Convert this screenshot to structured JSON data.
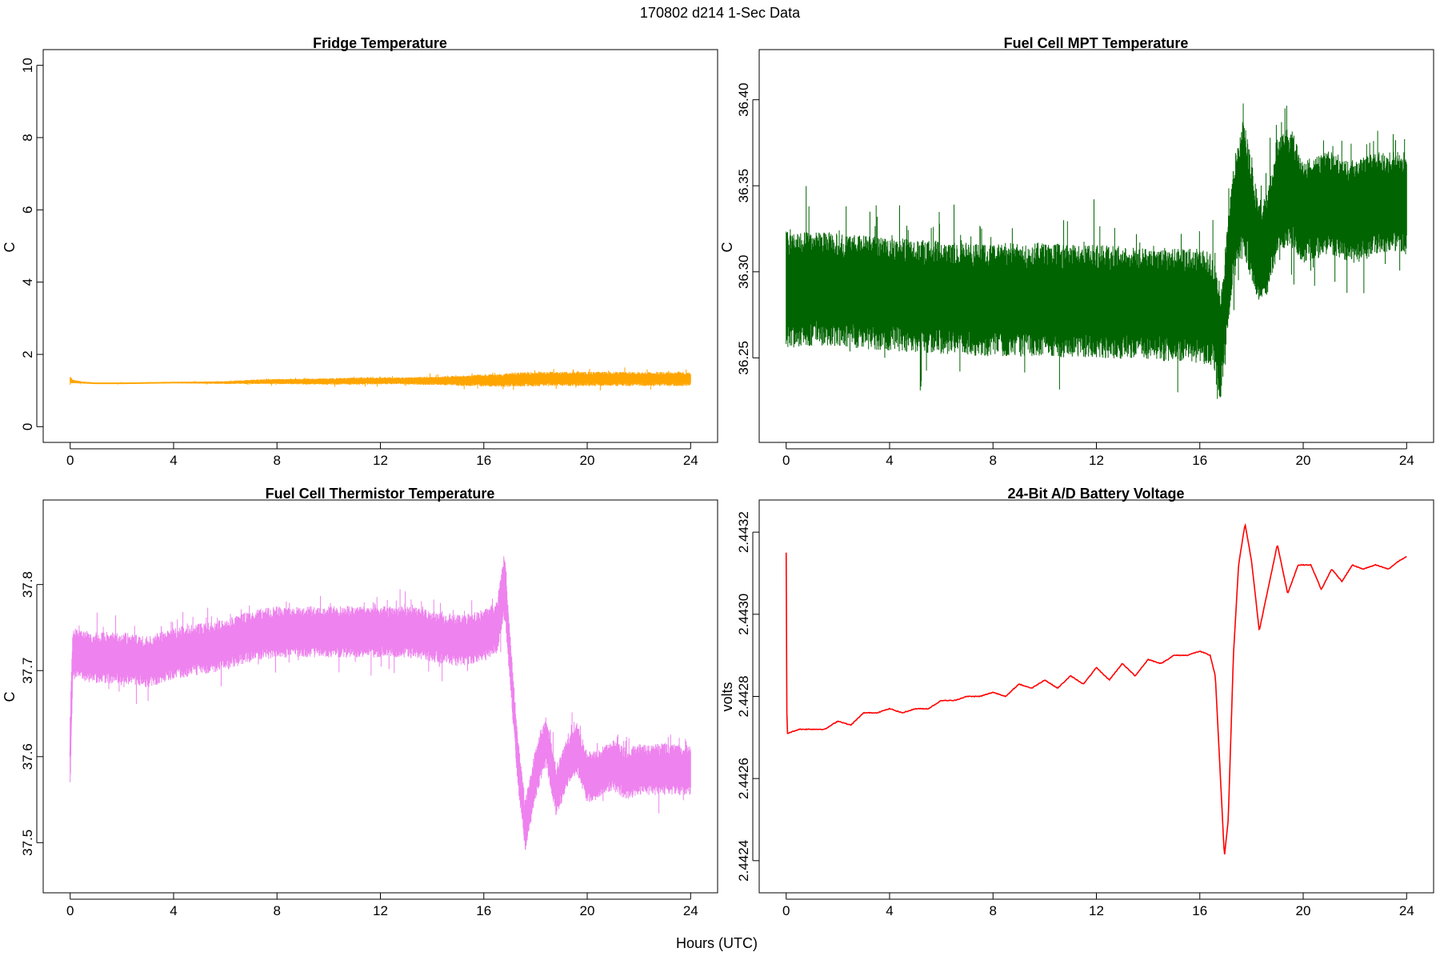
{
  "figure": {
    "title": "170802   d214   1-Sec Data",
    "xlabel": "Hours (UTC)"
  },
  "chart_data": [
    {
      "type": "line",
      "title": "Fridge Temperature",
      "ylabel": "C",
      "xlim": [
        0,
        24
      ],
      "ylim": [
        0,
        10
      ],
      "xticks": [
        "0",
        "4",
        "8",
        "12",
        "16",
        "20",
        "24"
      ],
      "yticks": [
        "0",
        "2",
        "4",
        "6",
        "8",
        "10"
      ],
      "color": "#FFA500",
      "style": "noisy-band",
      "series": [
        {
          "x": [
            0,
            0.1,
            0.5,
            1,
            2,
            3,
            4,
            5,
            6,
            7,
            8,
            9,
            10,
            11,
            12,
            13,
            14,
            15,
            16,
            16.7,
            17,
            18,
            19,
            20,
            21,
            22,
            23,
            24
          ],
          "center": [
            1.3,
            1.25,
            1.22,
            1.2,
            1.2,
            1.21,
            1.22,
            1.22,
            1.22,
            1.24,
            1.25,
            1.25,
            1.25,
            1.26,
            1.27,
            1.27,
            1.27,
            1.27,
            1.28,
            1.28,
            1.3,
            1.32,
            1.32,
            1.32,
            1.32,
            1.32,
            1.32,
            1.32
          ],
          "amplitude": [
            0.1,
            0.05,
            0.03,
            0.02,
            0.02,
            0.02,
            0.02,
            0.03,
            0.04,
            0.06,
            0.07,
            0.08,
            0.09,
            0.1,
            0.1,
            0.1,
            0.12,
            0.14,
            0.17,
            0.18,
            0.2,
            0.2,
            0.2,
            0.2,
            0.2,
            0.2,
            0.2,
            0.2
          ]
        }
      ]
    },
    {
      "type": "line",
      "title": "Fuel Cell MPT Temperature",
      "ylabel": "C",
      "xlim": [
        0,
        24
      ],
      "ylim": [
        36.21,
        36.42
      ],
      "xticks": [
        "0",
        "4",
        "8",
        "12",
        "16",
        "20",
        "24"
      ],
      "yticks": [
        "36.25",
        "36.30",
        "36.35",
        "36.40"
      ],
      "color": "#006400",
      "style": "noisy-band",
      "series": [
        {
          "x": [
            0,
            1,
            2,
            3,
            4,
            5,
            6,
            7,
            8,
            9,
            10,
            11,
            12,
            13,
            14,
            15,
            16,
            16.5,
            16.8,
            17,
            17.3,
            17.7,
            18,
            18.3,
            18.6,
            19,
            19.5,
            20,
            21,
            22,
            23,
            24
          ],
          "center": [
            36.29,
            36.29,
            36.29,
            36.288,
            36.287,
            36.286,
            36.285,
            36.284,
            36.284,
            36.284,
            36.284,
            36.283,
            36.283,
            36.282,
            36.281,
            36.281,
            36.28,
            36.278,
            36.255,
            36.285,
            36.33,
            36.35,
            36.33,
            36.31,
            36.315,
            36.345,
            36.35,
            36.335,
            36.34,
            36.335,
            36.34,
            36.34
          ],
          "amplitude": [
            0.035,
            0.033,
            0.033,
            0.033,
            0.033,
            0.033,
            0.033,
            0.033,
            0.033,
            0.033,
            0.033,
            0.033,
            0.033,
            0.033,
            0.033,
            0.033,
            0.033,
            0.033,
            0.03,
            0.03,
            0.035,
            0.04,
            0.035,
            0.03,
            0.03,
            0.035,
            0.035,
            0.03,
            0.03,
            0.03,
            0.03,
            0.03
          ]
        }
      ]
    },
    {
      "type": "line",
      "title": "Fuel Cell Thermistor Temperature",
      "ylabel": "C",
      "xlim": [
        0,
        24
      ],
      "ylim": [
        37.46,
        37.88
      ],
      "xticks": [
        "0",
        "4",
        "8",
        "12",
        "16",
        "20",
        "24"
      ],
      "yticks": [
        "37.5",
        "37.6",
        "37.7",
        "37.8"
      ],
      "color": "#EE82EE",
      "style": "noisy-band",
      "series": [
        {
          "x": [
            0,
            0.1,
            1,
            2,
            3,
            4,
            5,
            6,
            7,
            8,
            9,
            10,
            11,
            12,
            13,
            14,
            15,
            16,
            16.5,
            16.8,
            17,
            17.3,
            17.6,
            18,
            18.4,
            18.8,
            19.2,
            19.6,
            20,
            20.5,
            21,
            21.5,
            22,
            23,
            24
          ],
          "center": [
            37.6,
            37.72,
            37.715,
            37.715,
            37.71,
            37.72,
            37.725,
            37.73,
            37.74,
            37.745,
            37.745,
            37.745,
            37.745,
            37.745,
            37.745,
            37.74,
            37.735,
            37.74,
            37.75,
            37.8,
            37.72,
            37.6,
            37.52,
            37.58,
            37.62,
            37.56,
            37.59,
            37.61,
            37.575,
            37.58,
            37.59,
            37.58,
            37.585,
            37.585,
            37.585
          ],
          "amplitude": [
            0.05,
            0.03,
            0.03,
            0.03,
            0.03,
            0.03,
            0.03,
            0.03,
            0.03,
            0.03,
            0.03,
            0.03,
            0.03,
            0.03,
            0.03,
            0.03,
            0.03,
            0.03,
            0.03,
            0.04,
            0.03,
            0.03,
            0.03,
            0.03,
            0.03,
            0.03,
            0.03,
            0.03,
            0.03,
            0.03,
            0.03,
            0.03,
            0.03,
            0.03,
            0.03
          ]
        }
      ]
    },
    {
      "type": "line",
      "title": "24-Bit A/D Battery Voltage",
      "ylabel": "volts",
      "xlim": [
        0,
        24
      ],
      "ylim": [
        2.44236,
        2.44324
      ],
      "xticks": [
        "0",
        "4",
        "8",
        "12",
        "16",
        "20",
        "24"
      ],
      "yticks": [
        "2.4424",
        "2.4426",
        "2.4428",
        "2.4430",
        "2.4432"
      ],
      "color": "#FF0000",
      "style": "thin-line",
      "series": [
        {
          "x": [
            0,
            0.03,
            0.06,
            0.5,
            1,
            1.5,
            2,
            2.5,
            3,
            3.5,
            4,
            4.5,
            5,
            5.5,
            6,
            6.5,
            7,
            7.5,
            8,
            8.5,
            9,
            9.5,
            10,
            10.5,
            11,
            11.5,
            12,
            12.5,
            13,
            13.5,
            14,
            14.5,
            15,
            15.5,
            16,
            16.4,
            16.6,
            16.8,
            16.95,
            17.1,
            17.3,
            17.5,
            17.75,
            18,
            18.3,
            18.6,
            19,
            19.4,
            19.8,
            20.3,
            20.7,
            21.1,
            21.5,
            21.9,
            22.3,
            22.8,
            23.3,
            23.7,
            24
          ],
          "y": [
            2.44315,
            2.44271,
            2.44271,
            2.44272,
            2.44272,
            2.44272,
            2.44274,
            2.44273,
            2.44276,
            2.44276,
            2.44277,
            2.44276,
            2.44277,
            2.44277,
            2.44279,
            2.44279,
            2.4428,
            2.4428,
            2.44281,
            2.4428,
            2.44283,
            2.44282,
            2.44284,
            2.44282,
            2.44285,
            2.44283,
            2.44287,
            2.44284,
            2.44288,
            2.44285,
            2.44289,
            2.44288,
            2.4429,
            2.4429,
            2.44291,
            2.4429,
            2.44285,
            2.4426,
            2.44241,
            2.4425,
            2.4429,
            2.44312,
            2.44322,
            2.44313,
            2.44296,
            2.44305,
            2.44317,
            2.44305,
            2.44312,
            2.44312,
            2.44306,
            2.44311,
            2.44308,
            2.44312,
            2.44311,
            2.44312,
            2.44311,
            2.44313,
            2.44314
          ]
        }
      ]
    }
  ]
}
